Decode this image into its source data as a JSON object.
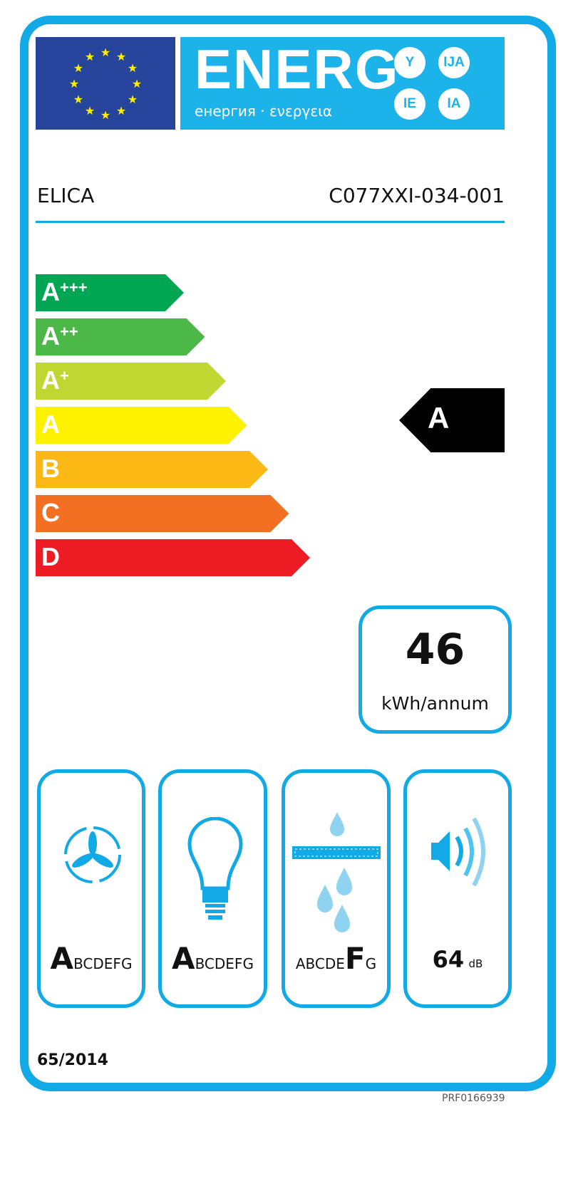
{
  "header": {
    "title": "ENERG",
    "subtitle": "енергия · ενεργεια",
    "suffixes": [
      "Y",
      "IJA",
      "IE",
      "IA"
    ]
  },
  "supplier": "ELICA",
  "model": "C077XXI-034-001",
  "scale": [
    {
      "label": "A",
      "plus": "+++",
      "color": "#00a651"
    },
    {
      "label": "A",
      "plus": "++",
      "color": "#4cb848"
    },
    {
      "label": "A",
      "plus": "+",
      "color": "#bfd730"
    },
    {
      "label": "A",
      "plus": "",
      "color": "#fff200"
    },
    {
      "label": "B",
      "plus": "",
      "color": "#fcb814"
    },
    {
      "label": "C",
      "plus": "",
      "color": "#f36f21"
    },
    {
      "label": "D",
      "plus": "",
      "color": "#ed1c24"
    }
  ],
  "rating": "A",
  "consumption": {
    "value": "46",
    "unit": "kWh/annum"
  },
  "pictograms": [
    {
      "icon": "fan-icon",
      "selected": "A",
      "rest": "BCDEFG"
    },
    {
      "icon": "light-bulb-icon",
      "selected": "A",
      "rest": "BCDEFG"
    },
    {
      "icon": "grease-filter-icon",
      "before": "ABCDE",
      "selected": "F",
      "after": "G"
    },
    {
      "icon": "speaker-icon",
      "value": "64",
      "unit": "dB"
    }
  ],
  "regulation": "65/2014",
  "code": "PRF0166939",
  "colors": {
    "border": "#12aae6",
    "header": "#1cb2ea",
    "flag": "#26449b"
  }
}
